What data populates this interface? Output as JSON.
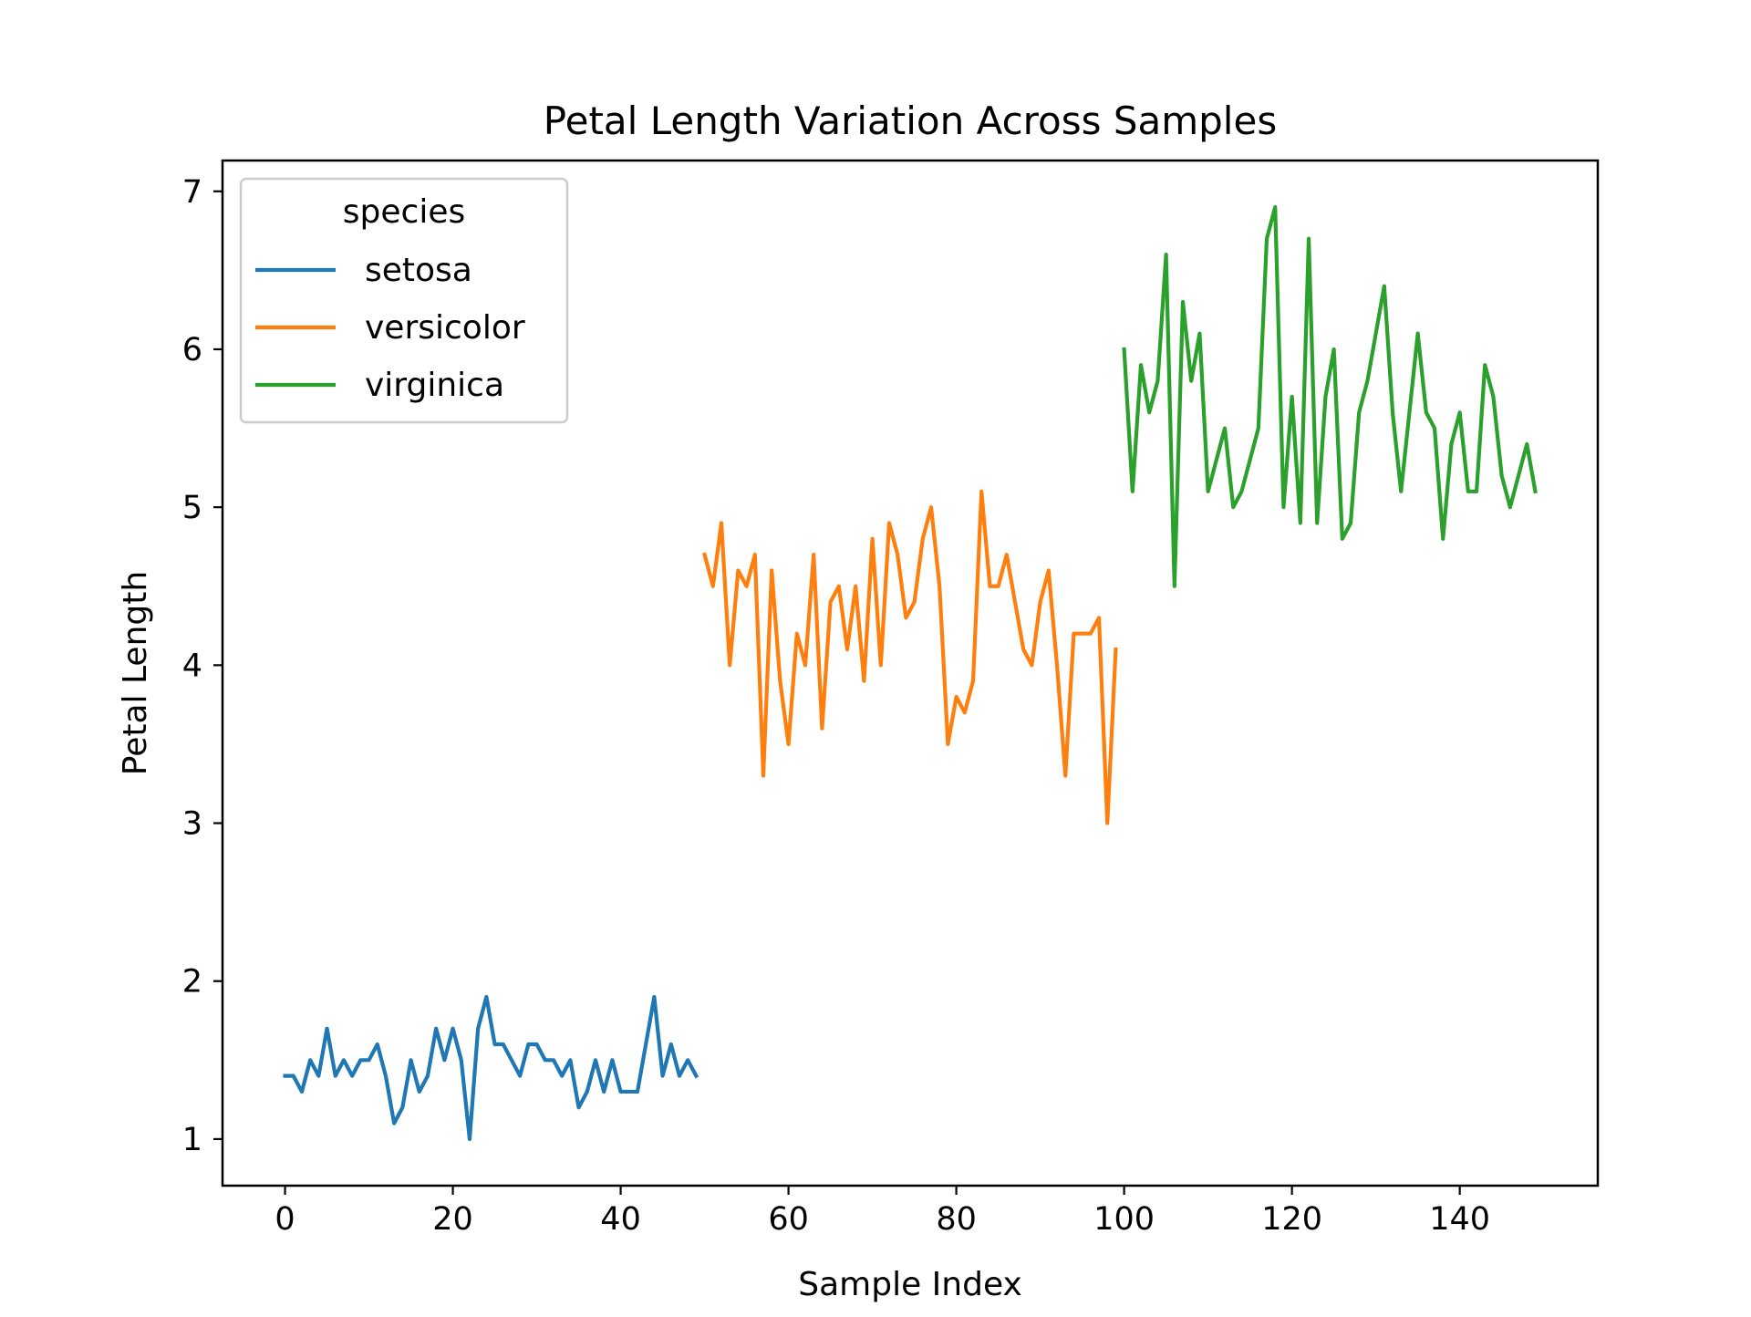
{
  "chart_data": {
    "type": "line",
    "title": "Petal Length Variation Across Samples",
    "xlabel": "Sample Index",
    "ylabel": "Petal Length",
    "xlim": [
      -7.45,
      156.45
    ],
    "ylim": [
      0.705,
      7.195
    ],
    "xticks": [
      0,
      20,
      40,
      60,
      80,
      100,
      120,
      140
    ],
    "yticks": [
      1,
      2,
      3,
      4,
      5,
      6,
      7
    ],
    "grid": false,
    "legend": {
      "title": "species",
      "placement": "top-left"
    },
    "series": [
      {
        "name": "setosa",
        "color": "#1f77b4",
        "x_start": 0,
        "values": [
          1.4,
          1.4,
          1.3,
          1.5,
          1.4,
          1.7,
          1.4,
          1.5,
          1.4,
          1.5,
          1.5,
          1.6,
          1.4,
          1.1,
          1.2,
          1.5,
          1.3,
          1.4,
          1.7,
          1.5,
          1.7,
          1.5,
          1.0,
          1.7,
          1.9,
          1.6,
          1.6,
          1.5,
          1.4,
          1.6,
          1.6,
          1.5,
          1.5,
          1.4,
          1.5,
          1.2,
          1.3,
          1.5,
          1.3,
          1.5,
          1.3,
          1.3,
          1.3,
          1.6,
          1.9,
          1.4,
          1.6,
          1.4,
          1.5,
          1.4
        ]
      },
      {
        "name": "versicolor",
        "color": "#ff7f0e",
        "x_start": 50,
        "values": [
          4.7,
          4.5,
          4.9,
          4.0,
          4.6,
          4.5,
          4.7,
          3.3,
          4.6,
          3.9,
          3.5,
          4.2,
          4.0,
          4.7,
          3.6,
          4.4,
          4.5,
          4.1,
          4.5,
          3.9,
          4.8,
          4.0,
          4.9,
          4.7,
          4.3,
          4.4,
          4.8,
          5.0,
          4.5,
          3.5,
          3.8,
          3.7,
          3.9,
          5.1,
          4.5,
          4.5,
          4.7,
          4.4,
          4.1,
          4.0,
          4.4,
          4.6,
          4.0,
          3.3,
          4.2,
          4.2,
          4.2,
          4.3,
          3.0,
          4.1
        ]
      },
      {
        "name": "virginica",
        "color": "#2ca02c",
        "x_start": 100,
        "values": [
          6.0,
          5.1,
          5.9,
          5.6,
          5.8,
          6.6,
          4.5,
          6.3,
          5.8,
          6.1,
          5.1,
          5.3,
          5.5,
          5.0,
          5.1,
          5.3,
          5.5,
          6.7,
          6.9,
          5.0,
          5.7,
          4.9,
          6.7,
          4.9,
          5.7,
          6.0,
          4.8,
          4.9,
          5.6,
          5.8,
          6.1,
          6.4,
          5.6,
          5.1,
          5.6,
          6.1,
          5.6,
          5.5,
          4.8,
          5.4,
          5.6,
          5.1,
          5.1,
          5.9,
          5.7,
          5.2,
          5.0,
          5.2,
          5.4,
          5.1
        ]
      }
    ]
  }
}
